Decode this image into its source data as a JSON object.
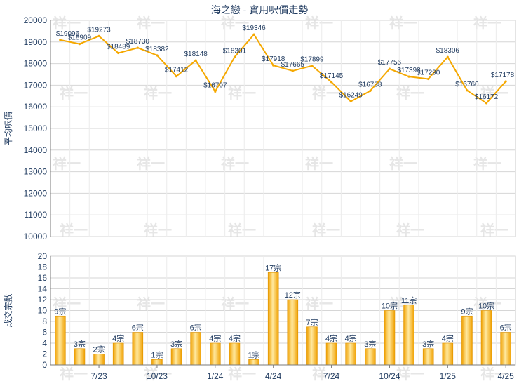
{
  "chart_data": [
    {
      "type": "line",
      "title": "海之戀 - 實用呎價走勢",
      "ylabel": "平均呎價",
      "ylim": [
        10000,
        20000
      ],
      "yticks": [
        10000,
        11000,
        12000,
        13000,
        14000,
        15000,
        16000,
        17000,
        18000,
        19000,
        20000
      ],
      "point_prefix": "$",
      "color": "#f5a800",
      "values": [
        19096,
        18909,
        19273,
        18489,
        18730,
        18382,
        17412,
        18148,
        16707,
        18301,
        19346,
        17918,
        17665,
        17899,
        17145,
        16249,
        16738,
        17756,
        17398,
        17290,
        18306,
        16760,
        16172,
        17178
      ]
    },
    {
      "type": "bar",
      "ylabel": "成交宗數",
      "ylim": [
        0,
        20
      ],
      "yticks": [
        0,
        2,
        4,
        6,
        8,
        10,
        12,
        14,
        16,
        18,
        20
      ],
      "label_suffix": "宗",
      "color": "#f5a800",
      "values": [
        9,
        3,
        2,
        4,
        6,
        1,
        3,
        6,
        4,
        4,
        1,
        17,
        12,
        7,
        4,
        4,
        3,
        10,
        11,
        3,
        4,
        9,
        10,
        6
      ],
      "x_tick_labels": [
        {
          "index": 2,
          "label": "7/23"
        },
        {
          "index": 5,
          "label": "10/23"
        },
        {
          "index": 8,
          "label": "1/24"
        },
        {
          "index": 11,
          "label": "4/24"
        },
        {
          "index": 14,
          "label": "7/24"
        },
        {
          "index": 17,
          "label": "10/24"
        },
        {
          "index": 20,
          "label": "1/25"
        },
        {
          "index": 23,
          "label": "4/25"
        }
      ]
    }
  ],
  "watermark": "祥一"
}
